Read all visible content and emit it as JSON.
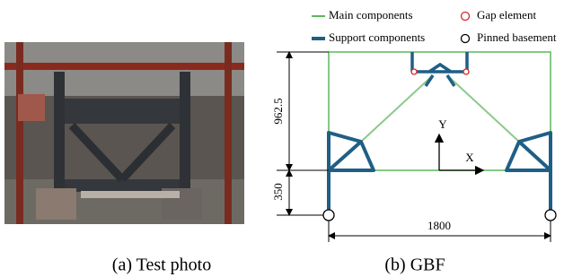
{
  "legend": [
    {
      "label": "Main components"
    },
    {
      "label": "Gap element"
    },
    {
      "label": "Support components"
    },
    {
      "label": "Pinned basement"
    }
  ],
  "diagram": {
    "axis_y": "Y",
    "axis_x": "X",
    "dim_upper": "962.5",
    "dim_lower": "350",
    "dim_width": "1800"
  },
  "captions": [
    "(a) Test photo",
    "(b) GBF"
  ]
}
